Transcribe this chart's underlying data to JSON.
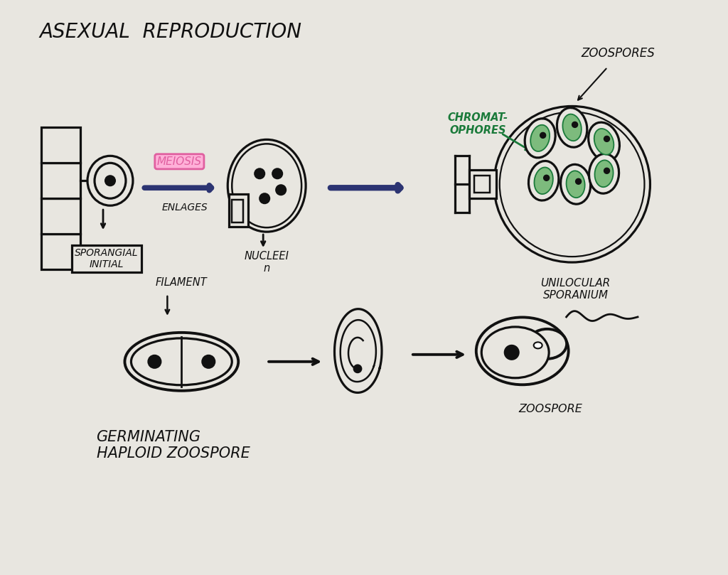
{
  "bg_color": "#e8e6e0",
  "title": "ASEXUAL  REPRODUCTION",
  "title_fontsize": 20,
  "title_color": "#111111",
  "labels": {
    "sporangial_initial": "SPORANGIAL\nINITIAL",
    "enlarges": "ENLAGES",
    "meiosis": "MEIOSIS",
    "nuclei": "NUCLEEI\nn",
    "zoospores": "ZOOSPORES",
    "chromatophores": "CHROMAT-\nOPHORES",
    "unilocular": "UNILOCULAR\nSPORANIUM",
    "zoospore": "ZOOSPORE",
    "filament": "FILAMENT",
    "germinating": "GERMINATING\nHAPLOID ZOOSPORE"
  },
  "black": "#111111",
  "navy": "#2c3472",
  "green": "#1a7a3a",
  "pink": "#e060a0",
  "pink_bg": "#ffb0d8"
}
